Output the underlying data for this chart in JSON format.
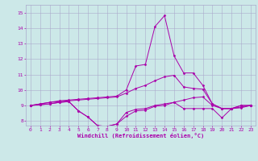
{
  "title": "",
  "xlabel": "Windchill (Refroidissement éolien,°C)",
  "ylabel": "",
  "xlim": [
    -0.5,
    23.5
  ],
  "ylim": [
    7.7,
    15.5
  ],
  "xticks": [
    0,
    1,
    2,
    3,
    4,
    5,
    6,
    7,
    8,
    9,
    10,
    11,
    12,
    13,
    14,
    15,
    16,
    17,
    18,
    19,
    20,
    21,
    22,
    23
  ],
  "yticks": [
    8,
    9,
    10,
    11,
    12,
    13,
    14,
    15
  ],
  "bg_color": "#cce8e8",
  "line_color": "#aa00aa",
  "grid_color": "#aaaacc",
  "lines": [
    [
      9.0,
      9.1,
      9.2,
      9.3,
      9.35,
      9.4,
      9.45,
      9.5,
      9.55,
      9.6,
      10.0,
      11.55,
      11.65,
      14.1,
      14.8,
      12.2,
      11.1,
      11.1,
      10.3,
      9.1,
      8.8,
      8.8,
      9.0,
      9.0
    ],
    [
      9.0,
      9.1,
      9.2,
      9.25,
      9.3,
      9.35,
      9.4,
      9.45,
      9.5,
      9.55,
      9.8,
      10.1,
      10.3,
      10.6,
      10.85,
      10.95,
      10.2,
      10.1,
      10.05,
      9.1,
      8.8,
      8.8,
      8.9,
      9.0
    ],
    [
      9.0,
      9.05,
      9.1,
      9.2,
      9.25,
      8.65,
      8.25,
      7.7,
      7.65,
      7.8,
      8.3,
      8.65,
      8.7,
      8.95,
      9.0,
      9.2,
      9.35,
      9.5,
      9.55,
      9.0,
      8.8,
      8.8,
      9.0,
      9.0
    ],
    [
      9.0,
      9.05,
      9.1,
      9.2,
      9.25,
      8.65,
      8.25,
      7.7,
      7.65,
      7.8,
      8.55,
      8.75,
      8.8,
      9.0,
      9.1,
      9.2,
      8.8,
      8.8,
      8.8,
      8.8,
      8.2,
      8.8,
      8.85,
      9.0
    ]
  ]
}
